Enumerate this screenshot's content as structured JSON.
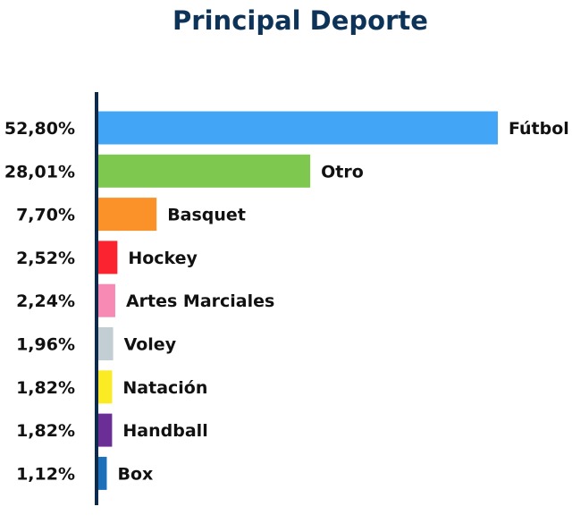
{
  "chart_data": {
    "type": "bar",
    "orientation": "horizontal",
    "title": "Principal Deporte",
    "xlabel": "",
    "ylabel": "",
    "grid": false,
    "legend": "none",
    "categories": [
      "Fútbol",
      "Otro",
      "Basquet",
      "Hockey",
      "Artes Marciales",
      "Voley",
      "Natación",
      "Handball",
      "Box"
    ],
    "values": [
      52.8,
      28.01,
      7.7,
      2.52,
      2.24,
      1.96,
      1.82,
      1.82,
      1.12
    ],
    "value_labels": [
      "52,80%",
      "28,01%",
      "7,70%",
      "2,52%",
      "2,24%",
      "1,96%",
      "1,82%",
      "1,82%",
      "1,12%"
    ],
    "colors": [
      "#42a5f5",
      "#7ec850",
      "#fb9229",
      "#fb2330",
      "#f78ab5",
      "#c2cdd4",
      "#fbeb24",
      "#6a2e96",
      "#1d6fba"
    ],
    "xlim": [
      0,
      52.8
    ],
    "axis_color": "#0d2a4a"
  }
}
